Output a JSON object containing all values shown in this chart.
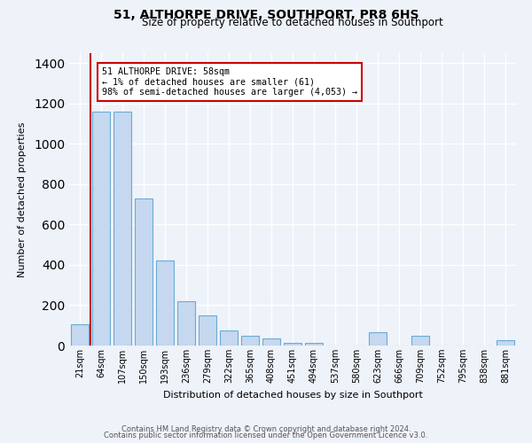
{
  "title": "51, ALTHORPE DRIVE, SOUTHPORT, PR8 6HS",
  "subtitle": "Size of property relative to detached houses in Southport",
  "xlabel": "Distribution of detached houses by size in Southport",
  "ylabel": "Number of detached properties",
  "bar_labels": [
    "21sqm",
    "64sqm",
    "107sqm",
    "150sqm",
    "193sqm",
    "236sqm",
    "279sqm",
    "322sqm",
    "365sqm",
    "408sqm",
    "451sqm",
    "494sqm",
    "537sqm",
    "580sqm",
    "623sqm",
    "666sqm",
    "709sqm",
    "752sqm",
    "795sqm",
    "838sqm",
    "881sqm"
  ],
  "bar_values": [
    107,
    1160,
    1160,
    730,
    420,
    220,
    150,
    75,
    50,
    33,
    15,
    15,
    0,
    0,
    65,
    0,
    48,
    0,
    0,
    0,
    25
  ],
  "bar_color": "#c5d8f0",
  "bar_edge_color": "#6aaad4",
  "red_line_color": "#cc0000",
  "annotation_title": "51 ALTHORPE DRIVE: 58sqm",
  "annotation_line1": "← 1% of detached houses are smaller (61)",
  "annotation_line2": "98% of semi-detached houses are larger (4,053) →",
  "annotation_box_color": "#ffffff",
  "annotation_box_edge_color": "#cc0000",
  "background_color": "#eef2f9",
  "grid_color": "#ffffff",
  "ylim": [
    0,
    1450
  ],
  "footer1": "Contains HM Land Registry data © Crown copyright and database right 2024.",
  "footer2": "Contains public sector information licensed under the Open Government Licence v3.0."
}
